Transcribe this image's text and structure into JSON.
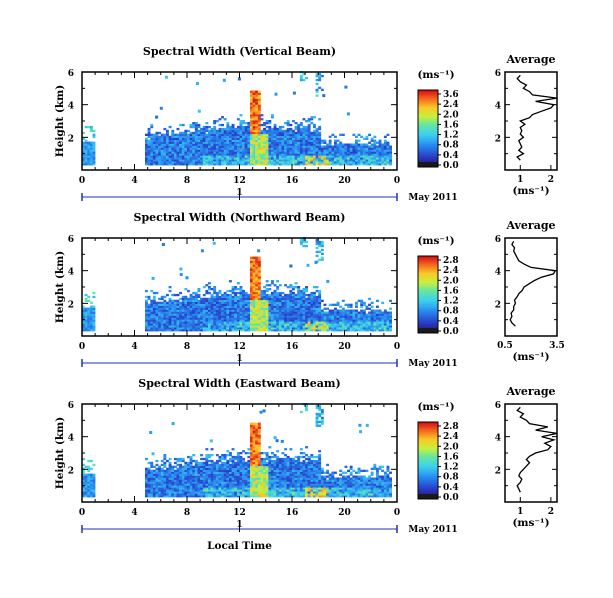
{
  "chart_data": {
    "type": "heatmap",
    "panels": [
      {
        "title": "Spectral Width (Vertical Beam)",
        "ylabel": "Height (km)",
        "xlabel": "",
        "x_ticks": [
          "0",
          "4",
          "8",
          "12",
          "16",
          "20",
          "0"
        ],
        "y_ticks": [
          "2",
          "4",
          "6"
        ],
        "date_day": "1",
        "date_label": "May 2011",
        "xlim": [
          0,
          24
        ],
        "ylim": [
          0,
          6
        ],
        "colorbar": {
          "unit": "(ms⁻¹)",
          "ticks": [
            "3.6",
            "2.4",
            "2.0",
            "1.6",
            "1.2",
            "0.8",
            "0.4",
            "0.0"
          ],
          "range": [
            0,
            3.6
          ]
        },
        "profile": {
          "title": "Average",
          "x_ticks": [
            "1",
            "2"
          ],
          "xlim": [
            0.5,
            2.2
          ],
          "y_ticks": [
            "2",
            "4",
            "6"
          ],
          "ylim": [
            0,
            6
          ],
          "xlabel": "(ms⁻¹)",
          "height": [
            0.6,
            0.8,
            1.0,
            1.2,
            1.4,
            1.6,
            1.8,
            2.0,
            2.2,
            2.4,
            2.6,
            2.8,
            3.0,
            3.2,
            3.4,
            3.6,
            3.8,
            4.0,
            4.2,
            4.4,
            4.6,
            4.8,
            5.0,
            5.2,
            5.4,
            5.6,
            5.8
          ],
          "width": [
            1.0,
            0.9,
            1.1,
            0.95,
            1.05,
            1.0,
            0.95,
            1.1,
            1.0,
            1.05,
            1.0,
            1.15,
            1.0,
            1.3,
            1.4,
            1.7,
            2.0,
            2.1,
            1.5,
            2.2,
            1.4,
            1.3,
            1.1,
            1.2,
            1.0,
            0.9,
            1.0
          ]
        }
      },
      {
        "title": "Spectral Width (Northward Beam)",
        "ylabel": "Height (km)",
        "xlabel": "",
        "x_ticks": [
          "0",
          "4",
          "8",
          "12",
          "16",
          "20",
          "0"
        ],
        "y_ticks": [
          "2",
          "4",
          "6"
        ],
        "date_day": "1",
        "date_label": "May 2011",
        "xlim": [
          0,
          24
        ],
        "ylim": [
          0,
          6
        ],
        "colorbar": {
          "unit": "(ms⁻¹)",
          "ticks": [
            "2.8",
            "2.4",
            "2.0",
            "1.6",
            "1.2",
            "0.8",
            "0.4",
            "0.0"
          ],
          "range": [
            0,
            2.8
          ]
        },
        "profile": {
          "title": "Average",
          "x_ticks": [
            "0.5",
            "3.5"
          ],
          "xlim": [
            0.5,
            3.5
          ],
          "y_ticks": [
            "2",
            "4",
            "6"
          ],
          "ylim": [
            0,
            6
          ],
          "xlabel": "(ms⁻¹)",
          "height": [
            0.6,
            0.8,
            1.0,
            1.2,
            1.4,
            1.6,
            1.8,
            2.0,
            2.2,
            2.4,
            2.6,
            2.8,
            3.0,
            3.2,
            3.4,
            3.6,
            3.8,
            4.0,
            4.2,
            4.4,
            4.6,
            4.8,
            5.0,
            5.2,
            5.4,
            5.6,
            5.8
          ],
          "width": [
            1.1,
            0.9,
            0.8,
            0.9,
            0.85,
            1.0,
            1.0,
            1.1,
            1.05,
            1.2,
            1.3,
            1.5,
            1.6,
            1.9,
            2.2,
            2.6,
            3.3,
            3.4,
            2.0,
            1.6,
            1.3,
            1.2,
            1.1,
            1.0,
            1.05,
            0.9,
            1.0
          ]
        }
      },
      {
        "title": "Spectral Width (Eastward Beam)",
        "ylabel": "Height (km)",
        "xlabel": "Local Time",
        "x_ticks": [
          "0",
          "4",
          "8",
          "12",
          "16",
          "20",
          "0"
        ],
        "y_ticks": [
          "2",
          "4",
          "6"
        ],
        "date_day": "1",
        "date_label": "May 2011",
        "xlim": [
          0,
          24
        ],
        "ylim": [
          0,
          6
        ],
        "colorbar": {
          "unit": "(ms⁻¹)",
          "ticks": [
            "2.8",
            "2.4",
            "2.0",
            "1.6",
            "1.2",
            "0.8",
            "0.4",
            "0.0"
          ],
          "range": [
            0,
            2.8
          ]
        },
        "profile": {
          "title": "Average",
          "x_ticks": [
            "1",
            "2"
          ],
          "xlim": [
            0.5,
            2.2
          ],
          "y_ticks": [
            "2",
            "4",
            "6"
          ],
          "ylim": [
            0,
            6
          ],
          "xlabel": "(ms⁻¹)",
          "height": [
            0.6,
            0.8,
            1.0,
            1.2,
            1.4,
            1.6,
            1.8,
            2.0,
            2.2,
            2.4,
            2.6,
            2.8,
            3.0,
            3.2,
            3.4,
            3.6,
            3.8,
            4.0,
            4.2,
            4.4,
            4.6,
            4.8,
            5.0,
            5.2,
            5.4,
            5.6,
            5.8
          ],
          "width": [
            1.0,
            0.95,
            0.9,
            1.0,
            1.05,
            0.95,
            1.0,
            1.1,
            1.2,
            1.3,
            1.2,
            1.3,
            1.5,
            1.9,
            2.0,
            1.8,
            2.1,
            1.7,
            2.2,
            1.5,
            1.9,
            1.3,
            1.2,
            1.0,
            1.1,
            0.9,
            1.0
          ]
        }
      }
    ]
  }
}
